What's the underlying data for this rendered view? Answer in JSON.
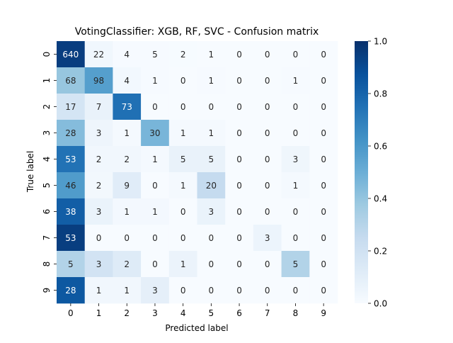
{
  "chart_data": {
    "type": "heatmap",
    "title": "VotingClassifier: XGB, RF, SVC - Confusion matrix",
    "xlabel": "Predicted label",
    "ylabel": "True label",
    "x_categories": [
      "0",
      "1",
      "2",
      "3",
      "4",
      "5",
      "6",
      "7",
      "8",
      "9"
    ],
    "y_categories": [
      "0",
      "1",
      "2",
      "3",
      "4",
      "5",
      "6",
      "7",
      "8",
      "9"
    ],
    "values": [
      [
        640,
        22,
        4,
        5,
        2,
        1,
        0,
        0,
        0,
        0
      ],
      [
        68,
        98,
        4,
        1,
        0,
        1,
        0,
        0,
        1,
        0
      ],
      [
        17,
        7,
        73,
        0,
        0,
        0,
        0,
        0,
        0,
        0
      ],
      [
        28,
        3,
        1,
        30,
        1,
        1,
        0,
        0,
        0,
        0
      ],
      [
        53,
        2,
        2,
        1,
        5,
        5,
        0,
        0,
        3,
        0
      ],
      [
        46,
        2,
        9,
        0,
        1,
        20,
        0,
        0,
        1,
        0
      ],
      [
        38,
        3,
        1,
        1,
        0,
        3,
        0,
        0,
        0,
        0
      ],
      [
        53,
        0,
        0,
        0,
        0,
        0,
        0,
        3,
        0,
        0
      ],
      [
        5,
        3,
        2,
        0,
        1,
        0,
        0,
        0,
        5,
        0
      ],
      [
        28,
        1,
        1,
        3,
        0,
        0,
        0,
        0,
        0,
        0
      ]
    ],
    "normalization": "row",
    "colormap": "Blues",
    "colorbar": {
      "range": [
        0.0,
        1.0
      ],
      "ticks": [
        "0.0",
        "0.2",
        "0.4",
        "0.6",
        "0.8",
        "1.0"
      ]
    },
    "annotations": true
  }
}
